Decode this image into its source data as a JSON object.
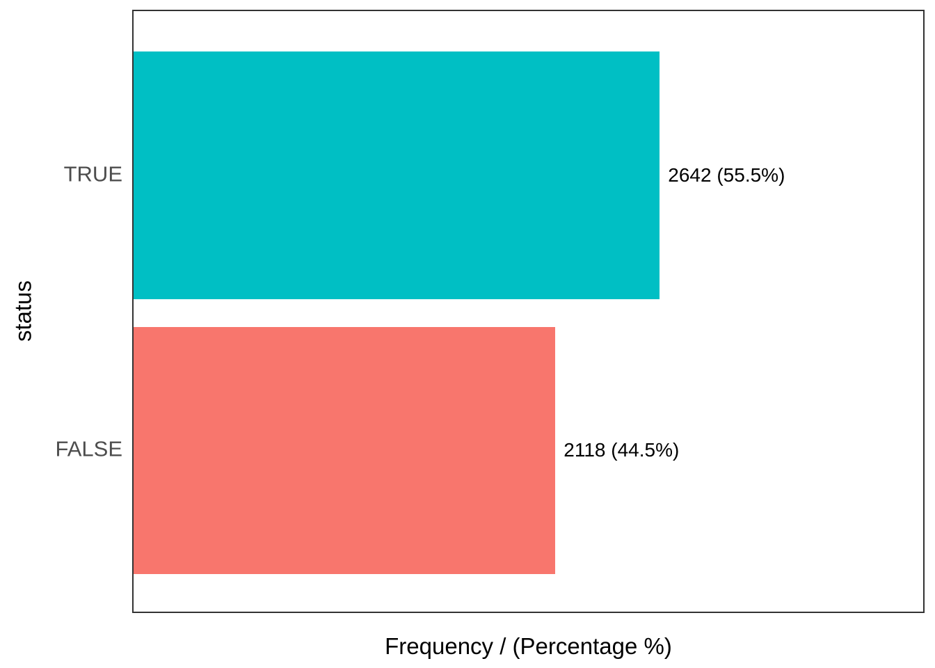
{
  "chart_data": {
    "type": "bar",
    "orientation": "horizontal",
    "title": "",
    "xlabel": "Frequency / (Percentage %)",
    "ylabel": "status",
    "categories": [
      "TRUE",
      "FALSE"
    ],
    "values": [
      2642,
      2118
    ],
    "percentages": [
      55.5,
      44.5
    ],
    "bar_labels": [
      "2642 (55.5%)",
      "2118 (44.5%)"
    ],
    "colors": [
      "#00BFC4",
      "#F8766D"
    ],
    "xlim": [
      0,
      3965
    ],
    "grid": false,
    "legend_position": "none",
    "x_tick_labels": []
  },
  "styles": {
    "panel_border_color": "#333333",
    "tick_label_color": "#4D4D4D",
    "axis_title_color": "#000000",
    "bar_label_color": "#000000",
    "background": "#FFFFFF"
  }
}
